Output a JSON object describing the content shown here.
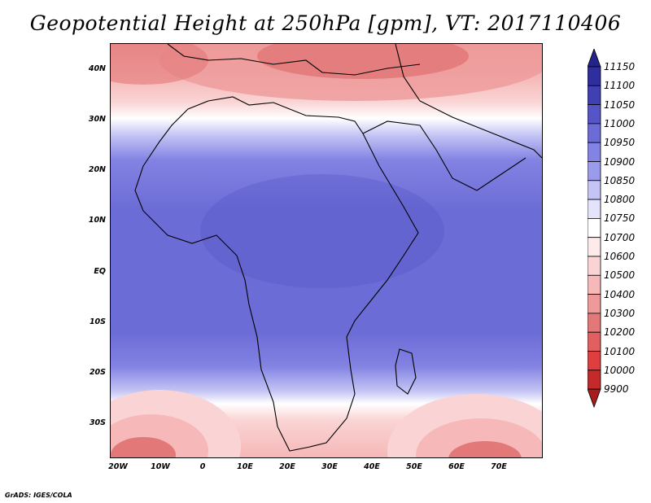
{
  "title": "Geopotential Height at 250hPa [gpm], VT: 2017110406",
  "credit": "GrADS: IGES/COLA",
  "map": {
    "y_ticks": [
      "40N",
      "30N",
      "20N",
      "10N",
      "EQ",
      "10S",
      "20S",
      "30S"
    ],
    "x_ticks": [
      "20W",
      "10W",
      "0",
      "10E",
      "20E",
      "30E",
      "40E",
      "50E",
      "60E",
      "70E"
    ]
  },
  "colorbar": {
    "levels": [
      "9900",
      "10000",
      "10100",
      "10200",
      "10300",
      "10400",
      "10500",
      "10600",
      "10700",
      "10750",
      "10800",
      "10850",
      "10900",
      "10950",
      "11000",
      "11050",
      "11100",
      "11150"
    ],
    "colors": [
      "#a61d1d",
      "#c42a2a",
      "#de3e3e",
      "#e15f5f",
      "#e27878",
      "#ee9a9a",
      "#f6b8b8",
      "#fad4d4",
      "#fdeaea",
      "#ffffff",
      "#e3e3fb",
      "#c5c5f5",
      "#9b9bec",
      "#8383e3",
      "#6c6cd6",
      "#5555c8",
      "#4040b3",
      "#2e2e9e",
      "#23238a"
    ]
  }
}
